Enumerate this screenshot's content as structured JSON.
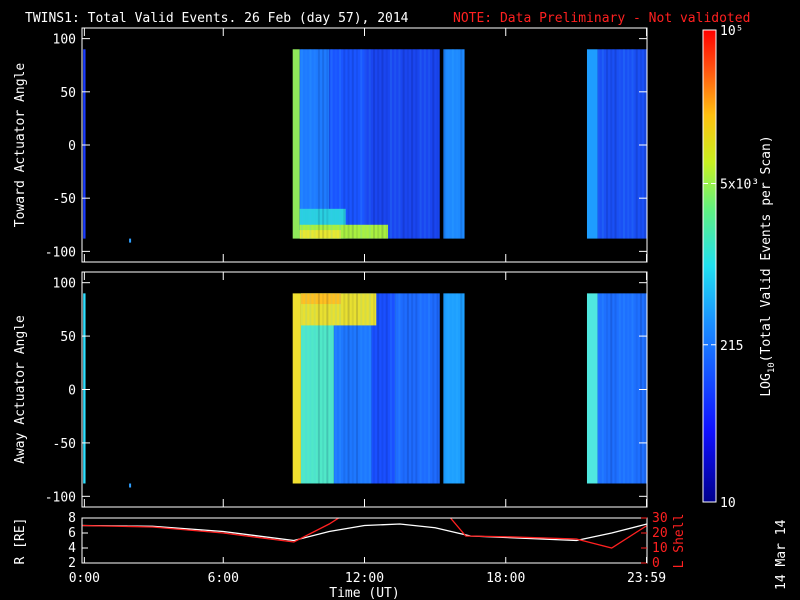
{
  "header": {
    "title": "TWINS1: Total Valid Events. 26 Feb (day  57), 2014",
    "note": "NOTE: Data Preliminary - Not validoted"
  },
  "colors": {
    "background": "#000000",
    "note": "#ff2020",
    "r_line": "#ffffff",
    "lshell_line": "#ff2020",
    "low": "#1a1aff",
    "high": "#ff1a1a"
  },
  "chart_data": [
    {
      "type": "heatmap",
      "name": "toward-panel",
      "ylabel": "Toward Actuator Angle",
      "ylim": [
        -110,
        110
      ],
      "yticks": [
        -100,
        -50,
        0,
        50,
        100
      ],
      "ytick_labels": [
        "-100",
        "-50",
        "0",
        "50",
        "100"
      ],
      "angle_range": [
        -88,
        90
      ],
      "blocks": [
        {
          "x0": 0.05,
          "x1": 0.15,
          "y0": -88,
          "y1": 90,
          "color": "#1a3cff"
        },
        {
          "x0": 8.95,
          "x1": 9.25,
          "y0": -88,
          "y1": 90,
          "color": "#8fe85a"
        },
        {
          "x0": 9.25,
          "x1": 10.5,
          "y0": -88,
          "y1": 90,
          "color": "#1e7bff"
        },
        {
          "x0": 10.5,
          "x1": 12.0,
          "y0": -88,
          "y1": 90,
          "color": "#1a55ff"
        },
        {
          "x0": 12.0,
          "x1": 15.2,
          "y0": -88,
          "y1": 90,
          "color": "#1a46f0"
        },
        {
          "x0": 15.2,
          "x1": 15.35,
          "y0": -88,
          "y1": 90,
          "color": "#000000"
        },
        {
          "x0": 15.35,
          "x1": 16.25,
          "y0": -88,
          "y1": 90,
          "color": "#1e8aff"
        },
        {
          "x0": 21.45,
          "x1": 21.9,
          "y0": -88,
          "y1": 90,
          "color": "#1e9dff"
        },
        {
          "x0": 21.9,
          "x1": 24.0,
          "y0": -88,
          "y1": 90,
          "color": "#1a50f5"
        },
        {
          "x0": 9.25,
          "x1": 11.2,
          "y0": -88,
          "y1": -60,
          "color": "#2ad0e0"
        },
        {
          "x0": 9.25,
          "x1": 13.0,
          "y0": -88,
          "y1": -75,
          "color": "#a8f040"
        },
        {
          "x0": 9.25,
          "x1": 11.0,
          "y0": -88,
          "y1": -80,
          "color": "#e8e830"
        }
      ]
    },
    {
      "type": "heatmap",
      "name": "away-panel",
      "ylabel": "Away Actuator Angle",
      "ylim": [
        -110,
        110
      ],
      "yticks": [
        -100,
        -50,
        0,
        50,
        100
      ],
      "ytick_labels": [
        "-100",
        "-50",
        "0",
        "50",
        "100"
      ],
      "angle_range": [
        -88,
        90
      ],
      "blocks": [
        {
          "x0": 0.05,
          "x1": 0.15,
          "y0": -88,
          "y1": 90,
          "color": "#2fe0ff"
        },
        {
          "x0": 8.95,
          "x1": 9.3,
          "y0": -88,
          "y1": 90,
          "color": "#f0e030"
        },
        {
          "x0": 9.3,
          "x1": 10.7,
          "y0": -88,
          "y1": 90,
          "color": "#50e8c8"
        },
        {
          "x0": 10.7,
          "x1": 12.3,
          "y0": -88,
          "y1": 90,
          "color": "#1e78ff"
        },
        {
          "x0": 12.3,
          "x1": 13.3,
          "y0": -88,
          "y1": 90,
          "color": "#1a50ff"
        },
        {
          "x0": 13.3,
          "x1": 15.2,
          "y0": -88,
          "y1": 90,
          "color": "#1e6cff"
        },
        {
          "x0": 15.2,
          "x1": 15.35,
          "y0": -88,
          "y1": 90,
          "color": "#000000"
        },
        {
          "x0": 15.35,
          "x1": 16.25,
          "y0": -88,
          "y1": 90,
          "color": "#1ea0ff"
        },
        {
          "x0": 21.45,
          "x1": 21.9,
          "y0": -88,
          "y1": 90,
          "color": "#50e8e0"
        },
        {
          "x0": 21.9,
          "x1": 24.0,
          "y0": -88,
          "y1": 90,
          "color": "#1e70ff"
        },
        {
          "x0": 9.3,
          "x1": 12.5,
          "y0": 60,
          "y1": 90,
          "color": "#e8e030"
        },
        {
          "x0": 9.3,
          "x1": 11.0,
          "y0": 80,
          "y1": 90,
          "color": "#ffc020"
        }
      ]
    },
    {
      "type": "line",
      "name": "orbit-panel",
      "ylabel": "R [RE]",
      "y2label": "L Shell",
      "ylim": [
        2,
        8
      ],
      "y2lim": [
        0,
        30
      ],
      "yticks": [
        2,
        4,
        6,
        8
      ],
      "ytick_labels": [
        "2",
        "4",
        "6",
        "8"
      ],
      "y2ticks": [
        0,
        10,
        20,
        30
      ],
      "y2tick_labels": [
        "0",
        "10",
        "20",
        "30"
      ],
      "series": [
        {
          "role": "R",
          "x": [
            0.0,
            3.0,
            6.0,
            9.0,
            10.5,
            12.0,
            13.5,
            15.0,
            16.5,
            18.0,
            21.0,
            22.5,
            24.0
          ],
          "y": [
            7.0,
            6.9,
            6.2,
            5.0,
            6.2,
            7.0,
            7.2,
            6.7,
            5.6,
            5.4,
            5.0,
            6.0,
            7.2
          ]
        },
        {
          "role": "L",
          "x": [
            0.0,
            3.0,
            6.0,
            9.0,
            10.5,
            11.0,
            15.6,
            16.3,
            18.0,
            21.0,
            22.5,
            24.0
          ],
          "y": [
            25,
            24,
            20,
            14,
            26,
            31,
            31,
            18,
            17.5,
            16,
            10,
            25
          ]
        }
      ]
    }
  ],
  "xaxis": {
    "label": "Time (UT)",
    "xlim": [
      0,
      24
    ],
    "ticks": [
      0.1,
      6,
      12,
      18,
      23.98
    ],
    "tick_labels": [
      "0:00",
      "6:00",
      "12:00",
      "18:00",
      "23:59"
    ]
  },
  "colorbar": {
    "label": "LOG10(Total Valid Events per Scan)",
    "label_main": "LOG",
    "label_sub": "10",
    "label_rest": "(Total Valid Events per Scan)",
    "ticks": [
      {
        "value": 10,
        "label": "10"
      },
      {
        "value": 215,
        "label": "215"
      },
      {
        "value": 5000,
        "label": "5x10³"
      },
      {
        "value": 100000,
        "label": "10⁵"
      }
    ],
    "range": [
      10,
      100000
    ]
  },
  "footer": {
    "date_stamp": "14 Mar 14"
  }
}
